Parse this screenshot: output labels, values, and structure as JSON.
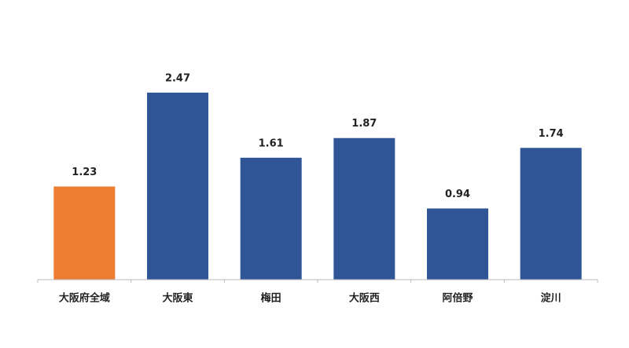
{
  "chart_data": {
    "type": "bar",
    "categories": [
      "大阪府全域",
      "大阪東",
      "梅田",
      "大阪西",
      "阿倍野",
      "淀川"
    ],
    "values": [
      1.23,
      2.47,
      1.61,
      1.87,
      0.94,
      1.74
    ],
    "colors": [
      "#ED7D31",
      "#2F5597",
      "#2F5597",
      "#2F5597",
      "#2F5597",
      "#2F5597"
    ]
  }
}
